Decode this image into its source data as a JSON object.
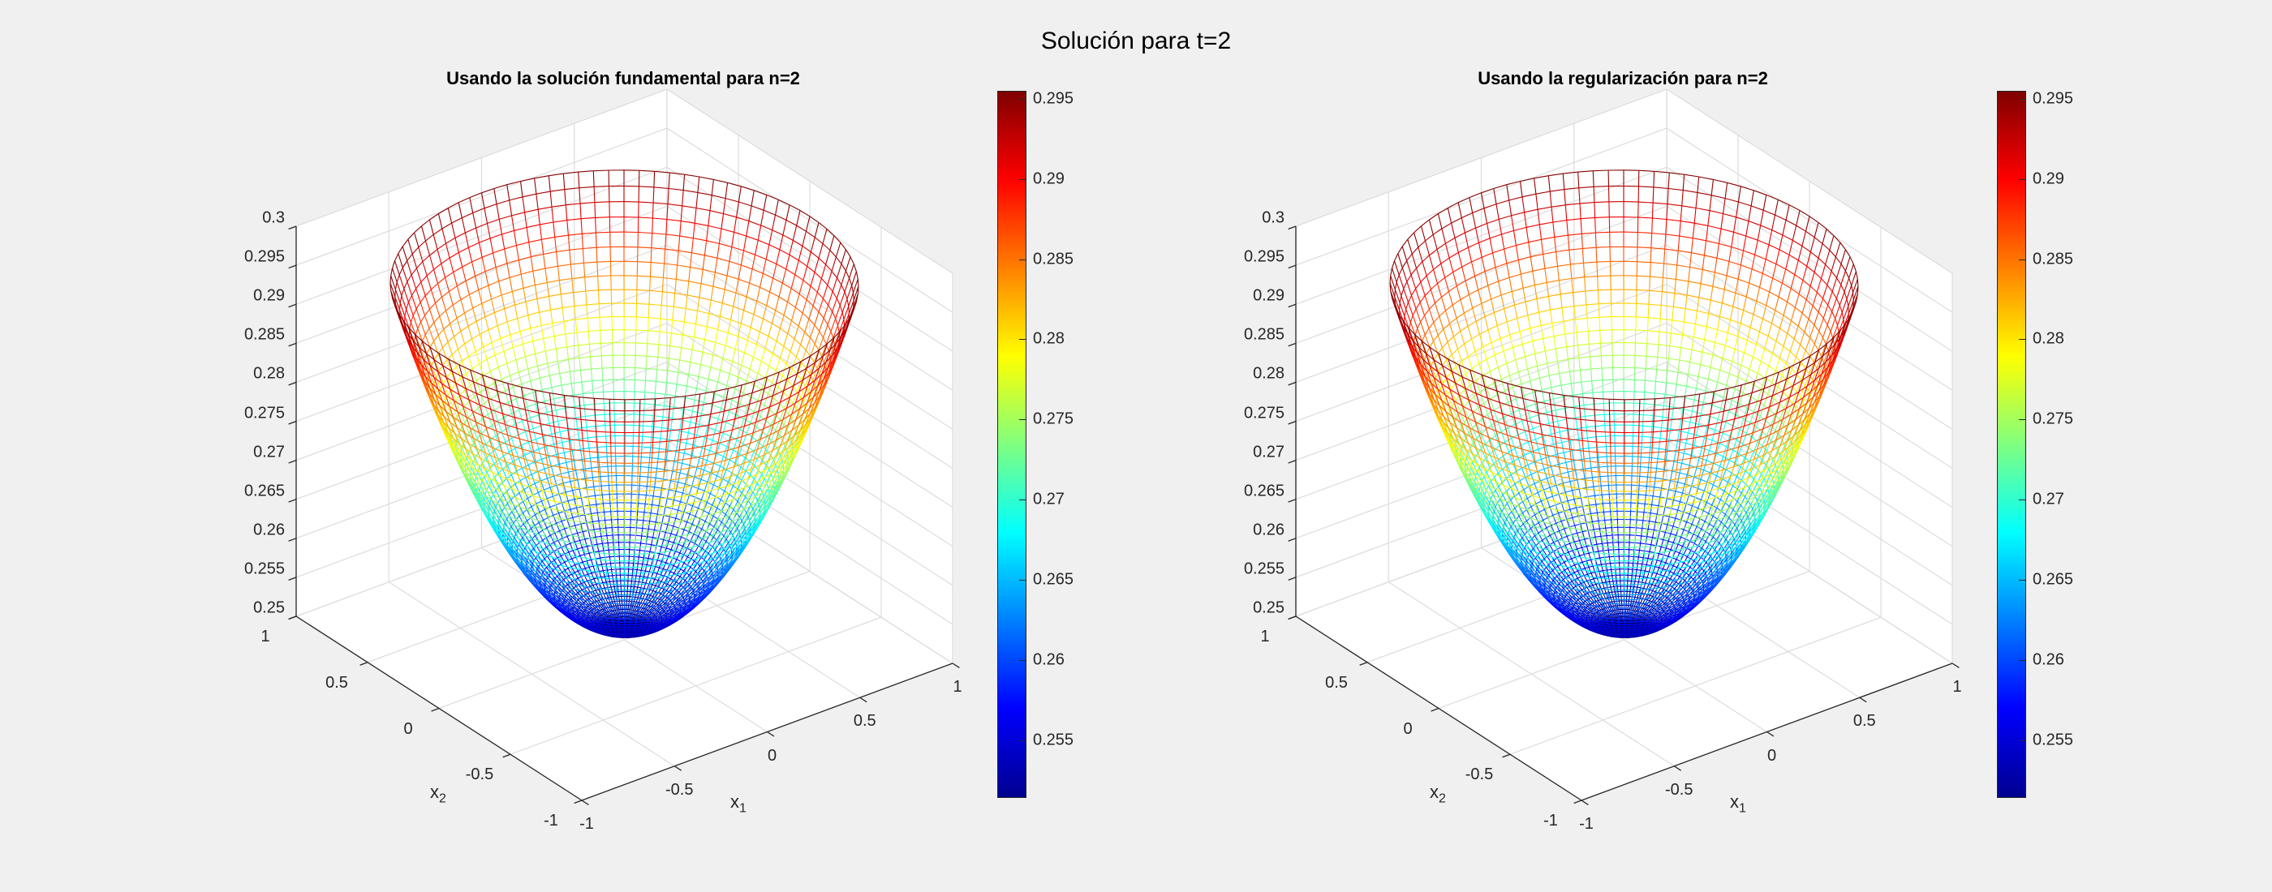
{
  "figure": {
    "title": "Solución para t=2"
  },
  "chart_data": [
    {
      "type": "surface-mesh",
      "title": "Usando la solución fundamental para n=2",
      "xlabel": "x",
      "xlabel_sub": "1",
      "ylabel": "x",
      "ylabel_sub": "2",
      "xlim": [
        -1,
        1
      ],
      "ylim": [
        -1,
        1
      ],
      "zlim": [
        0.25,
        0.3
      ],
      "xticks": [
        "-1",
        "-0.5",
        "0",
        "0.5",
        "1"
      ],
      "yticks": [
        "-1",
        "-0.5",
        "0",
        "0.5",
        "1"
      ],
      "zticks": [
        "0.25",
        "0.255",
        "0.26",
        "0.265",
        "0.27",
        "0.275",
        "0.28",
        "0.285",
        "0.29",
        "0.295",
        "0.3"
      ],
      "surface": {
        "shape": "paraboloid over unit disk",
        "z_center": 0.2515,
        "z_rim": 0.2955,
        "rim_radius": 1
      },
      "colormap": "jet",
      "colorbar_ticks": [
        "0.295",
        "0.29",
        "0.285",
        "0.28",
        "0.275",
        "0.27",
        "0.265",
        "0.26",
        "0.255"
      ],
      "colorbar_range": [
        0.2515,
        0.2955
      ],
      "grid": true
    },
    {
      "type": "surface-mesh",
      "title": "Usando la regularización para n=2",
      "xlabel": "x",
      "xlabel_sub": "1",
      "ylabel": "x",
      "ylabel_sub": "2",
      "xlim": [
        -1,
        1
      ],
      "ylim": [
        -1,
        1
      ],
      "zlim": [
        0.25,
        0.3
      ],
      "xticks": [
        "-1",
        "-0.5",
        "0",
        "0.5",
        "1"
      ],
      "yticks": [
        "-1",
        "-0.5",
        "0",
        "0.5",
        "1"
      ],
      "zticks": [
        "0.25",
        "0.255",
        "0.26",
        "0.265",
        "0.27",
        "0.275",
        "0.28",
        "0.285",
        "0.29",
        "0.295",
        "0.3"
      ],
      "surface": {
        "shape": "paraboloid over unit disk",
        "z_center": 0.2515,
        "z_rim": 0.2955,
        "rim_radius": 1
      },
      "colormap": "jet",
      "colorbar_ticks": [
        "0.295",
        "0.29",
        "0.285",
        "0.28",
        "0.275",
        "0.27",
        "0.265",
        "0.26",
        "0.255"
      ],
      "colorbar_range": [
        0.2515,
        0.2955
      ],
      "grid": true
    }
  ]
}
